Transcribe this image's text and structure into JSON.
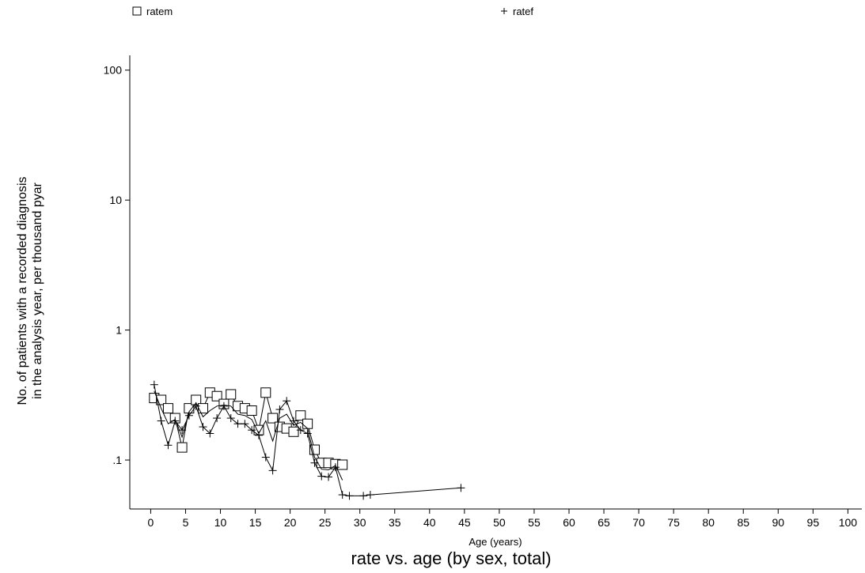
{
  "chart_data": {
    "type": "line",
    "title": "rate vs. age (by sex, total)",
    "xlabel": "Age (years)",
    "ylabel_lines": [
      "No. of patients with a recorded diagnosis",
      "in the analysis year, per thousand pyar"
    ],
    "x_ticks": [
      0,
      5,
      10,
      15,
      20,
      25,
      30,
      35,
      40,
      45,
      50,
      55,
      60,
      65,
      70,
      75,
      80,
      85,
      90,
      95,
      100
    ],
    "x_tick_labels": [
      "0",
      "5",
      "10",
      "15",
      "20",
      "25",
      "30",
      "35",
      "40",
      "45",
      "50",
      "55",
      "60",
      "65",
      "70",
      "75",
      "80",
      "85",
      "90",
      "95",
      "100"
    ],
    "xlim": [
      -3,
      102
    ],
    "y_scale": "log",
    "y_ticks": [
      0.1,
      1,
      10,
      100
    ],
    "y_tick_labels": [
      ".1",
      "1",
      "10",
      "100"
    ],
    "ylim": [
      0.042,
      130
    ],
    "grid": false,
    "legend_position": "top",
    "series": [
      {
        "name": "ratem",
        "marker": "square",
        "x": [
          0.5,
          1.5,
          2.5,
          3.5,
          4.5,
          5.5,
          6.5,
          7.5,
          8.5,
          9.5,
          10.5,
          11.5,
          12.5,
          13.5,
          14.5,
          15.5,
          16.5,
          17.5,
          18.5,
          19.5,
          20.5,
          21.5,
          22.5,
          23.5,
          24.5,
          25.5,
          26.5,
          27.5
        ],
        "values": [
          0.3,
          0.29,
          0.25,
          0.21,
          0.125,
          0.25,
          0.29,
          0.25,
          0.33,
          0.31,
          0.27,
          0.32,
          0.26,
          0.25,
          0.24,
          0.17,
          0.33,
          0.21,
          0.18,
          0.175,
          0.165,
          0.22,
          0.19,
          0.12,
          0.095,
          0.095,
          0.093,
          0.092
        ]
      },
      {
        "name": "ratef",
        "marker": "plus",
        "x": [
          0.5,
          1.5,
          2.5,
          3.5,
          4.5,
          5.5,
          6.5,
          7.5,
          8.5,
          9.5,
          10.5,
          11.5,
          12.5,
          13.5,
          14.5,
          15.5,
          16.5,
          17.5,
          18.5,
          19.5,
          20.5,
          21.5,
          22.5,
          23.5,
          24.5,
          25.5,
          26.5,
          27.5,
          28.5,
          30.5,
          31.5,
          44.5
        ],
        "values": [
          0.38,
          0.2,
          0.13,
          0.2,
          0.17,
          0.22,
          0.26,
          0.18,
          0.16,
          0.21,
          0.26,
          0.21,
          0.19,
          0.19,
          0.17,
          0.155,
          0.105,
          0.083,
          0.245,
          0.285,
          0.2,
          0.17,
          0.16,
          0.095,
          0.075,
          0.074,
          0.088,
          0.054,
          0.053,
          0.053,
          0.054,
          0.061
        ]
      },
      {
        "name": "",
        "marker": "none",
        "x": [
          0.5,
          1.5,
          2.5,
          3.5,
          4.5,
          5.5,
          6.5,
          7.5,
          8.5,
          9.5,
          10.5,
          11.5,
          12.5,
          13.5,
          14.5,
          15.5,
          16.5,
          17.5,
          18.5,
          19.5,
          20.5,
          21.5,
          22.5,
          23.5,
          24.5,
          25.5,
          26.5,
          27.5
        ],
        "values": [
          0.34,
          0.25,
          0.19,
          0.205,
          0.15,
          0.235,
          0.275,
          0.215,
          0.24,
          0.26,
          0.265,
          0.26,
          0.225,
          0.22,
          0.205,
          0.16,
          0.2,
          0.14,
          0.21,
          0.225,
          0.185,
          0.195,
          0.175,
          0.105,
          0.085,
          0.084,
          0.091,
          0.07
        ]
      }
    ]
  }
}
